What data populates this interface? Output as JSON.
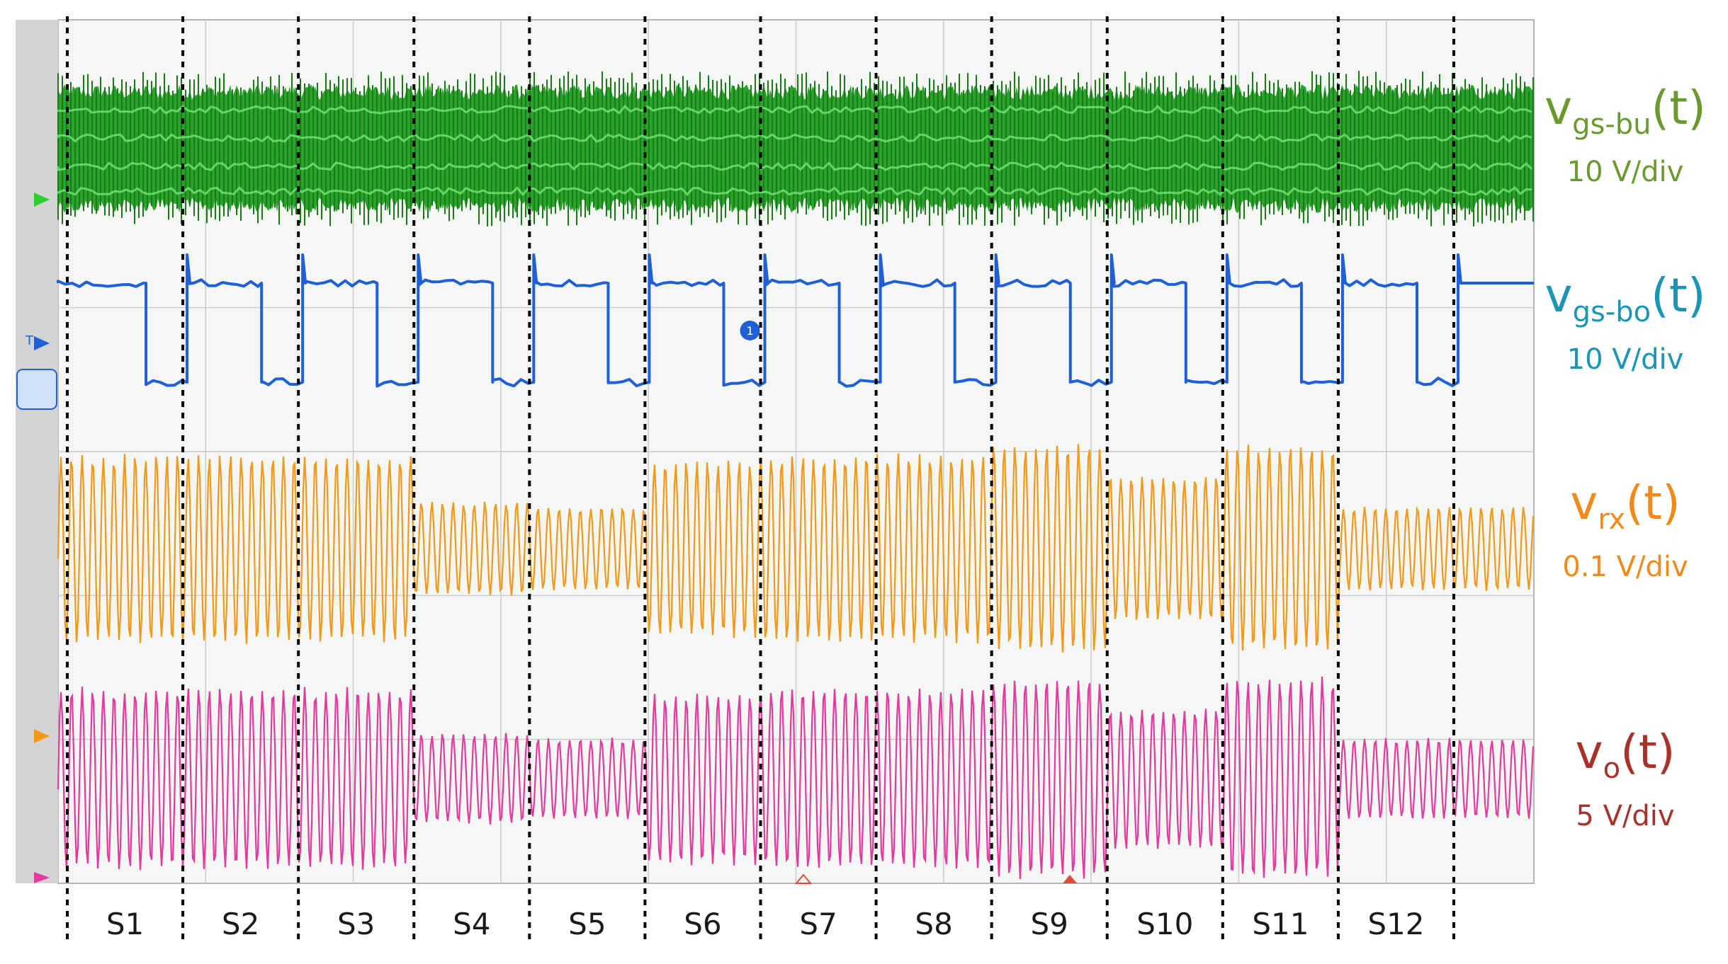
{
  "colors": {
    "ch1": "#1f9e1f",
    "ch1_light": "#6fe46f",
    "ch2": "#1f5fd8",
    "ch3": "#f0991a",
    "ch4": "#e23a9e",
    "label_ch1": "#6a9a2e",
    "label_ch2": "#1a96b4",
    "label_ch3": "#f08a1a",
    "label_ch4": "#a8322a",
    "grid": "#c9ccc9",
    "screen_bg": "#f4f7f4",
    "sidebar": "#d3d3d3",
    "divider": "#000000"
  },
  "signals": [
    {
      "id": "vgs_bu",
      "main": "v",
      "sub": "gs-bu",
      "tail": "(t)",
      "scale": "10 V/div"
    },
    {
      "id": "vgs_bo",
      "main": "v",
      "sub": "gs-bo",
      "tail": "(t)",
      "scale": "10 V/div"
    },
    {
      "id": "vrx",
      "main": "v",
      "sub": "rx",
      "tail": "(t)",
      "scale": "0.1 V/div"
    },
    {
      "id": "vo",
      "main": "v",
      "sub": "o",
      "tail": "(t)",
      "scale": "5 V/div"
    }
  ],
  "chart_data": {
    "type": "line",
    "segments": [
      "S1",
      "S2",
      "S3",
      "S4",
      "S5",
      "S6",
      "S7",
      "S8",
      "S9",
      "S10",
      "S11",
      "S12"
    ],
    "vgs_bo_state": [
      "high-low",
      "high-low",
      "high-low",
      "high-low",
      "high-low",
      "high-low",
      "high-low",
      "high-low",
      "high-low",
      "high-low",
      "high-low",
      "high-low"
    ],
    "vrx_relative_amplitude": [
      0.9,
      0.9,
      0.9,
      0.45,
      0.4,
      0.85,
      0.9,
      0.9,
      1.0,
      0.7,
      1.0,
      0.4
    ],
    "vo_relative_amplitude": [
      0.9,
      0.9,
      0.9,
      0.45,
      0.4,
      0.85,
      0.9,
      0.9,
      1.0,
      0.7,
      1.0,
      0.4
    ],
    "grid": true
  },
  "markers": {
    "cursor_label": "1",
    "trigger_label": "T"
  }
}
